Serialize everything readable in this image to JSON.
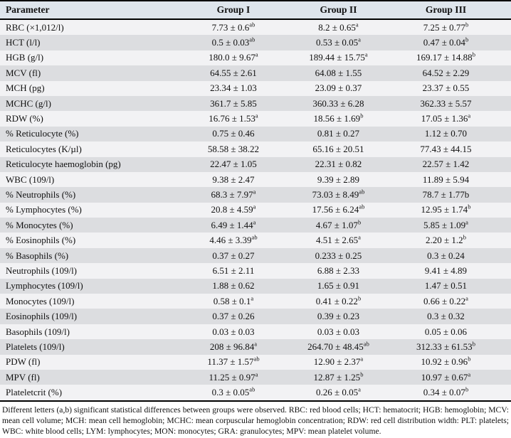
{
  "table": {
    "columns": [
      "Parameter",
      "Group I",
      "Group II",
      "Group III"
    ],
    "rows": [
      {
        "parameter": "RBC (×1,012/l)",
        "group1": {
          "value": "7.73 ± 0.6",
          "sup": "ab"
        },
        "group2": {
          "value": "8.2 ± 0.65",
          "sup": "a"
        },
        "group3": {
          "value": "7.25 ± 0.77",
          "sup": "b"
        }
      },
      {
        "parameter": "HCT (l/l)",
        "group1": {
          "value": "0.5 ± 0.03",
          "sup": "ab"
        },
        "group2": {
          "value": "0.53 ± 0.05",
          "sup": "a"
        },
        "group3": {
          "value": "0.47 ± 0.04",
          "sup": "b"
        }
      },
      {
        "parameter": "HGB (g/l)",
        "group1": {
          "value": "180.0 ± 9.67",
          "sup": "a"
        },
        "group2": {
          "value": "189.44 ± 15.75",
          "sup": "a"
        },
        "group3": {
          "value": "169.17 ± 14.88",
          "sup": "b"
        }
      },
      {
        "parameter": "MCV (fl)",
        "group1": {
          "value": "64.55 ± 2.61",
          "sup": ""
        },
        "group2": {
          "value": "64.08 ± 1.55",
          "sup": ""
        },
        "group3": {
          "value": "64.52 ± 2.29",
          "sup": ""
        }
      },
      {
        "parameter": "MCH (pg)",
        "group1": {
          "value": "23.34 ± 1.03",
          "sup": ""
        },
        "group2": {
          "value": "23.09 ± 0.37",
          "sup": ""
        },
        "group3": {
          "value": "23.37 ± 0.55",
          "sup": ""
        }
      },
      {
        "parameter": "MCHC (g/l)",
        "group1": {
          "value": "361.7 ± 5.85",
          "sup": ""
        },
        "group2": {
          "value": "360.33 ± 6.28",
          "sup": ""
        },
        "group3": {
          "value": "362.33 ± 5.57",
          "sup": ""
        }
      },
      {
        "parameter": "RDW (%)",
        "group1": {
          "value": "16.76 ± 1.53",
          "sup": "a"
        },
        "group2": {
          "value": "18.56 ± 1.69",
          "sup": "b"
        },
        "group3": {
          "value": "17.05 ± 1.36",
          "sup": "a"
        }
      },
      {
        "parameter": "% Reticulocyte (%)",
        "group1": {
          "value": "0.75 ± 0.46",
          "sup": ""
        },
        "group2": {
          "value": "0.81 ± 0.27",
          "sup": ""
        },
        "group3": {
          "value": "1.12 ± 0.70",
          "sup": ""
        }
      },
      {
        "parameter": "Reticulocytes (K/µl)",
        "group1": {
          "value": "58.58 ± 38.22",
          "sup": ""
        },
        "group2": {
          "value": "65.16 ± 20.51",
          "sup": ""
        },
        "group3": {
          "value": "77.43 ± 44.15",
          "sup": ""
        }
      },
      {
        "parameter": "Reticulocyte haemoglobin (pg)",
        "group1": {
          "value": "22.47 ± 1.05",
          "sup": ""
        },
        "group2": {
          "value": "22.31 ± 0.82",
          "sup": ""
        },
        "group3": {
          "value": "22.57 ± 1.42",
          "sup": ""
        }
      },
      {
        "parameter": "WBC (109/l)",
        "group1": {
          "value": "9.38 ± 2.47",
          "sup": ""
        },
        "group2": {
          "value": "9.39 ± 2.89",
          "sup": ""
        },
        "group3": {
          "value": "11.89 ± 5.94",
          "sup": ""
        }
      },
      {
        "parameter": "% Neutrophils (%)",
        "group1": {
          "value": "68.3 ± 7.97",
          "sup": "a"
        },
        "group2": {
          "value": "73.03 ± 8.49",
          "sup": "ab"
        },
        "group3": {
          "value": "78.7 ± 1.77b",
          "sup": ""
        }
      },
      {
        "parameter": "% Lymphocytes (%)",
        "group1": {
          "value": "20.8 ± 4.59",
          "sup": "a"
        },
        "group2": {
          "value": "17.56 ± 6.24",
          "sup": "ab"
        },
        "group3": {
          "value": "12.95 ± 1.74",
          "sup": "b"
        }
      },
      {
        "parameter": "% Monocytes (%)",
        "group1": {
          "value": "6.49 ± 1.44",
          "sup": "a"
        },
        "group2": {
          "value": "4.67 ± 1.07",
          "sup": "b"
        },
        "group3": {
          "value": "5.85 ± 1.09",
          "sup": "a"
        }
      },
      {
        "parameter": "% Eosinophils (%)",
        "group1": {
          "value": "4.46 ± 3.39",
          "sup": "ab"
        },
        "group2": {
          "value": "4.51 ± 2.65",
          "sup": "a"
        },
        "group3": {
          "value": "2.20 ± 1.2",
          "sup": "b"
        }
      },
      {
        "parameter": "% Basophils (%)",
        "group1": {
          "value": "0.37 ± 0.27",
          "sup": ""
        },
        "group2": {
          "value": "0.233 ± 0.25",
          "sup": ""
        },
        "group3": {
          "value": "0.3 ± 0.24",
          "sup": ""
        }
      },
      {
        "parameter": "Neutrophils (109/l)",
        "group1": {
          "value": "6.51 ± 2.11",
          "sup": ""
        },
        "group2": {
          "value": "6.88 ± 2.33",
          "sup": ""
        },
        "group3": {
          "value": "9.41 ± 4.89",
          "sup": ""
        }
      },
      {
        "parameter": "Lymphocytes (109/l)",
        "group1": {
          "value": "1.88 ± 0.62",
          "sup": ""
        },
        "group2": {
          "value": "1.65 ± 0.91",
          "sup": ""
        },
        "group3": {
          "value": "1.47 ± 0.51",
          "sup": ""
        }
      },
      {
        "parameter": "Monocytes (109/l)",
        "group1": {
          "value": "0.58 ± 0.1",
          "sup": "a"
        },
        "group2": {
          "value": "0.41 ± 0.22",
          "sup": "b"
        },
        "group3": {
          "value": "0.66 ± 0.22",
          "sup": "a"
        }
      },
      {
        "parameter": "Eosinophils (109/l)",
        "group1": {
          "value": "0.37 ± 0.26",
          "sup": ""
        },
        "group2": {
          "value": "0.39 ± 0.23",
          "sup": ""
        },
        "group3": {
          "value": "0.3 ± 0.32",
          "sup": ""
        }
      },
      {
        "parameter": "Basophils (109/l)",
        "group1": {
          "value": "0.03 ± 0.03",
          "sup": ""
        },
        "group2": {
          "value": "0.03 ± 0.03",
          "sup": ""
        },
        "group3": {
          "value": "0.05 ± 0.06",
          "sup": ""
        }
      },
      {
        "parameter": "Platelets (109/l)",
        "group1": {
          "value": "208 ± 96.84",
          "sup": "a"
        },
        "group2": {
          "value": "264.70 ± 48.45",
          "sup": "ab"
        },
        "group3": {
          "value": "312.33 ± 61.53",
          "sup": "b"
        }
      },
      {
        "parameter": "PDW (fl)",
        "group1": {
          "value": "11.37 ± 1.57",
          "sup": "ab"
        },
        "group2": {
          "value": "12.90 ± 2.37",
          "sup": "a"
        },
        "group3": {
          "value": "10.92 ± 0.96",
          "sup": "b"
        }
      },
      {
        "parameter": "MPV (fl)",
        "group1": {
          "value": "11.25 ± 0.97",
          "sup": "a"
        },
        "group2": {
          "value": "12.87 ± 1.25",
          "sup": "b"
        },
        "group3": {
          "value": "10.97 ± 0.67",
          "sup": "a"
        }
      },
      {
        "parameter": "Plateletcrit (%)",
        "group1": {
          "value": "0.3 ± 0.05",
          "sup": "ab"
        },
        "group2": {
          "value": "0.26 ± 0.05",
          "sup": "a"
        },
        "group3": {
          "value": "0.34 ± 0.07",
          "sup": "b"
        }
      }
    ]
  },
  "footnote": {
    "text": "Different letters (a,b) significant statistical differences between groups were observed. RBC: red blood cells; HCT: hematocrit; HGB: hemoglobin; MCV: mean cell volume; MCH: mean cell hemoglobin; MCHC: mean corpuscular hemoglobin concentration; RDW: red cell distribution width: PLT: platelets; WBC: white blood cells; LYM: lymphocytes; MON: monocytes; GRA: granulocytes; MPV: mean platelet volume."
  },
  "colors": {
    "header_bg": "#dee5ec",
    "row_light": "#f2f2f4",
    "row_dark": "#dcdde0",
    "border": "#000000",
    "text": "#111111"
  }
}
